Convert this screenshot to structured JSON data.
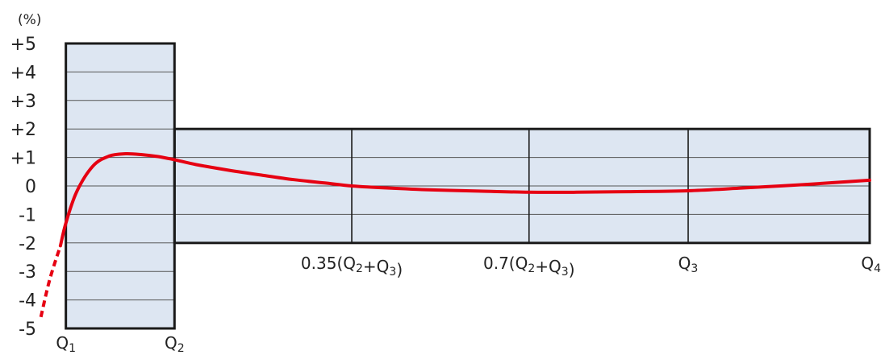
{
  "chart_data": {
    "type": "line",
    "y_unit": "(%)",
    "ylim": [
      -5,
      5
    ],
    "y_ticks": [
      {
        "value": 5,
        "label": "+5"
      },
      {
        "value": 4,
        "label": "+4"
      },
      {
        "value": 3,
        "label": "+3"
      },
      {
        "value": 2,
        "label": "+2"
      },
      {
        "value": 1,
        "label": "+1"
      },
      {
        "value": 0,
        "label": "0"
      },
      {
        "value": -1,
        "label": "-1"
      },
      {
        "value": -2,
        "label": "-2"
      },
      {
        "value": -3,
        "label": "-3"
      },
      {
        "value": -4,
        "label": "-4"
      },
      {
        "value": -5,
        "label": "-5"
      }
    ],
    "x_ticks": [
      {
        "id": "q1",
        "value": 0,
        "parts": [
          {
            "t": "Q"
          },
          {
            "t": "1",
            "sub": true
          }
        ]
      },
      {
        "id": "q2",
        "value": 1,
        "parts": [
          {
            "t": "Q"
          },
          {
            "t": "2",
            "sub": true
          }
        ]
      },
      {
        "id": "q2q3-035",
        "value": 2.632,
        "parts": [
          {
            "t": "0.35(Q"
          },
          {
            "t": "2",
            "sub": true
          },
          {
            "t": "+Q"
          },
          {
            "t": "3",
            "sub": true
          },
          {
            "t": ")"
          }
        ]
      },
      {
        "id": "q2q3-07",
        "value": 4.264,
        "parts": [
          {
            "t": "0.7(Q"
          },
          {
            "t": "2",
            "sub": true
          },
          {
            "t": "+Q"
          },
          {
            "t": "3",
            "sub": true
          },
          {
            "t": ")"
          }
        ]
      },
      {
        "id": "q3",
        "value": 5.729,
        "parts": [
          {
            "t": "Q"
          },
          {
            "t": "3",
            "sub": true
          }
        ]
      },
      {
        "id": "q4",
        "value": 7.4,
        "parts": [
          {
            "t": "Q"
          },
          {
            "t": "4",
            "sub": true
          }
        ]
      }
    ],
    "xlim": [
      -0.25,
      7.4
    ],
    "tolerance_bands": [
      {
        "x_start": 0,
        "x_end": 1,
        "y_min": -5,
        "y_max": 5
      },
      {
        "x_start": 1,
        "x_end": 7.4,
        "y_min": -2,
        "y_max": 2
      }
    ],
    "band_fill": "#dde6f2",
    "band_stroke": "#1a1a1a",
    "grid": true,
    "series": [
      {
        "color": "#e60012",
        "dashed_segment": [
          [
            -0.23,
            -4.6
          ],
          [
            -0.15,
            -3.3
          ],
          [
            -0.05,
            -2.1
          ]
        ],
        "points": [
          [
            -0.05,
            -2.1
          ],
          [
            0.0,
            -1.3
          ],
          [
            0.1,
            -0.2
          ],
          [
            0.25,
            0.7
          ],
          [
            0.4,
            1.05
          ],
          [
            0.55,
            1.13
          ],
          [
            0.7,
            1.1
          ],
          [
            0.85,
            1.03
          ],
          [
            1.0,
            0.92
          ],
          [
            1.2,
            0.75
          ],
          [
            1.5,
            0.55
          ],
          [
            1.8,
            0.38
          ],
          [
            2.1,
            0.22
          ],
          [
            2.4,
            0.1
          ],
          [
            2.632,
            0.0
          ],
          [
            3.0,
            -0.08
          ],
          [
            3.4,
            -0.14
          ],
          [
            3.8,
            -0.18
          ],
          [
            4.264,
            -0.22
          ],
          [
            4.7,
            -0.22
          ],
          [
            5.2,
            -0.2
          ],
          [
            5.729,
            -0.17
          ],
          [
            6.2,
            -0.08
          ],
          [
            6.8,
            0.05
          ],
          [
            7.4,
            0.2
          ]
        ]
      }
    ]
  }
}
